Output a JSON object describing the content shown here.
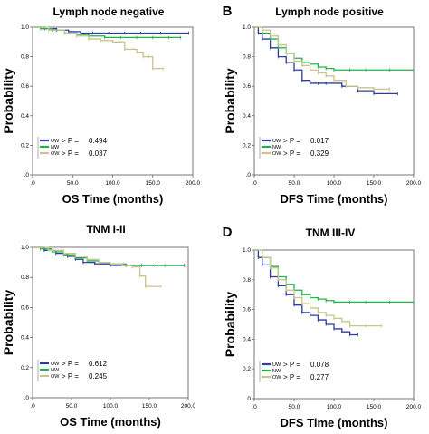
{
  "colors": {
    "UW": "#2b3d9e",
    "NW": "#22b14c",
    "OW": "#c8c48a"
  },
  "chart_data": [
    {
      "type": "line",
      "panel_label": "",
      "title": "Lymph node  negative",
      "title_mark": "-",
      "xlabel": "OS Time (months)",
      "ylabel": "Probability",
      "xlim": [
        0,
        200
      ],
      "ylim": [
        0,
        1.0
      ],
      "xticks": [
        ".0",
        "50.0",
        "100.0",
        "150.0",
        "200.0"
      ],
      "yticks": [
        ".0",
        "0.2",
        "0.4",
        "0.6",
        "0.8",
        "1.0"
      ],
      "legend": [
        {
          "name": "UW",
          "p": "> P = ",
          "pv": "0.494"
        },
        {
          "name": "NW",
          "p": "",
          "pv": ""
        },
        {
          "name": "OW",
          "p": "> P = ",
          "pv": "0.037"
        }
      ],
      "series": [
        {
          "name": "UW",
          "x": [
            0,
            15,
            30,
            45,
            60,
            75,
            95,
            115,
            135,
            160,
            195
          ],
          "y": [
            1.0,
            0.99,
            0.98,
            0.97,
            0.96,
            0.96,
            0.96,
            0.96,
            0.96,
            0.96,
            0.96
          ]
        },
        {
          "name": "NW",
          "x": [
            0,
            10,
            25,
            40,
            55,
            70,
            90,
            110,
            130,
            150,
            170,
            185
          ],
          "y": [
            1.0,
            0.99,
            0.98,
            0.96,
            0.95,
            0.94,
            0.93,
            0.93,
            0.93,
            0.93,
            0.93,
            0.93
          ]
        },
        {
          "name": "OW",
          "x": [
            0,
            20,
            40,
            55,
            70,
            85,
            100,
            115,
            130,
            138,
            145,
            150,
            163
          ],
          "y": [
            1.0,
            0.98,
            0.96,
            0.94,
            0.92,
            0.91,
            0.9,
            0.85,
            0.83,
            0.8,
            0.8,
            0.72,
            0.72
          ]
        }
      ]
    },
    {
      "type": "line",
      "panel_label": "B",
      "title": "Lymph node  positive",
      "xlabel": "DFS Time (months)",
      "ylabel": "Probability",
      "xlim": [
        0,
        200
      ],
      "ylim": [
        0,
        1.0
      ],
      "xticks": [
        ".0",
        "50.0",
        "100.0",
        "150.0",
        "200.0"
      ],
      "yticks": [
        ".0",
        "0.2",
        "0.4",
        "0.6",
        "0.8",
        "1.0"
      ],
      "legend": [
        {
          "name": "UW",
          "p": "> P = ",
          "pv": "0.017"
        },
        {
          "name": "NW",
          "p": "",
          "pv": ""
        },
        {
          "name": "OW",
          "p": "> P = ",
          "pv": "0.329"
        }
      ],
      "series": [
        {
          "name": "UW",
          "x": [
            0,
            5,
            10,
            20,
            30,
            40,
            50,
            60,
            70,
            80,
            90,
            110,
            130,
            150,
            180
          ],
          "y": [
            1.0,
            0.96,
            0.92,
            0.86,
            0.8,
            0.76,
            0.71,
            0.64,
            0.62,
            0.62,
            0.62,
            0.6,
            0.57,
            0.55,
            0.55
          ]
        },
        {
          "name": "NW",
          "x": [
            0,
            10,
            20,
            30,
            40,
            50,
            60,
            70,
            80,
            90,
            100,
            120,
            140,
            170,
            200
          ],
          "y": [
            1.0,
            0.96,
            0.92,
            0.86,
            0.82,
            0.79,
            0.76,
            0.75,
            0.73,
            0.72,
            0.71,
            0.71,
            0.71,
            0.71,
            0.71
          ]
        },
        {
          "name": "OW",
          "x": [
            0,
            10,
            20,
            30,
            40,
            50,
            60,
            70,
            80,
            90,
            100,
            115,
            130,
            150,
            170
          ],
          "y": [
            1.0,
            0.98,
            0.94,
            0.88,
            0.82,
            0.77,
            0.74,
            0.71,
            0.69,
            0.67,
            0.64,
            0.6,
            0.59,
            0.58,
            0.58
          ]
        }
      ]
    },
    {
      "type": "line",
      "panel_label": "",
      "title": "TNM I-II",
      "xlabel": "OS Time (months)",
      "ylabel": "Probability",
      "xlim": [
        0,
        200
      ],
      "ylim": [
        0,
        1.0
      ],
      "xticks": [
        ".0",
        "50.0",
        "100.0",
        "150.0",
        "200.0"
      ],
      "yticks": [
        ".0",
        "0.2",
        "0.4",
        "0.6",
        "0.8",
        "1.0"
      ],
      "legend": [
        {
          "name": "UW",
          "p": "> P = ",
          "pv": "0.612"
        },
        {
          "name": "NW",
          "p": "",
          "pv": ""
        },
        {
          "name": "OW",
          "p": "> P = ",
          "pv": "0.245"
        }
      ],
      "series": [
        {
          "name": "UW",
          "x": [
            0,
            15,
            30,
            45,
            55,
            65,
            80,
            100,
            120,
            140,
            160,
            195
          ],
          "y": [
            1.0,
            0.98,
            0.96,
            0.94,
            0.92,
            0.9,
            0.89,
            0.88,
            0.88,
            0.88,
            0.88,
            0.88
          ]
        },
        {
          "name": "NW",
          "x": [
            0,
            10,
            25,
            40,
            55,
            70,
            85,
            100,
            120,
            140,
            170,
            195
          ],
          "y": [
            1.0,
            0.99,
            0.97,
            0.95,
            0.93,
            0.91,
            0.9,
            0.89,
            0.88,
            0.88,
            0.88,
            0.88
          ]
        },
        {
          "name": "OW",
          "x": [
            0,
            20,
            40,
            55,
            70,
            85,
            100,
            115,
            128,
            138,
            145,
            165
          ],
          "y": [
            1.0,
            0.98,
            0.96,
            0.94,
            0.92,
            0.9,
            0.89,
            0.88,
            0.87,
            0.81,
            0.74,
            0.74
          ]
        }
      ]
    },
    {
      "type": "line",
      "panel_label": "D",
      "title": "TNM III-IV",
      "xlabel": "DFS Time (months)",
      "ylabel": "Probability",
      "xlim": [
        0,
        200
      ],
      "ylim": [
        0,
        1.0
      ],
      "xticks": [
        ".0",
        "50.0",
        "100.0",
        "150.0",
        "200.0"
      ],
      "yticks": [
        ".0",
        "0.2",
        "0.4",
        "0.6",
        "0.8",
        "1.0"
      ],
      "legend": [
        {
          "name": "UW",
          "p": "> P = ",
          "pv": "0.078"
        },
        {
          "name": "NW",
          "p": "",
          "pv": ""
        },
        {
          "name": "OW",
          "p": "> P = ",
          "pv": "0.277"
        }
      ],
      "series": [
        {
          "name": "UW",
          "x": [
            0,
            5,
            10,
            20,
            30,
            40,
            50,
            60,
            70,
            80,
            90,
            100,
            110,
            120,
            130
          ],
          "y": [
            1.0,
            0.95,
            0.9,
            0.82,
            0.76,
            0.7,
            0.63,
            0.58,
            0.56,
            0.53,
            0.5,
            0.47,
            0.45,
            0.43,
            0.43
          ]
        },
        {
          "name": "NW",
          "x": [
            0,
            10,
            20,
            30,
            40,
            50,
            60,
            70,
            80,
            90,
            100,
            120,
            140,
            170,
            200
          ],
          "y": [
            1.0,
            0.95,
            0.89,
            0.82,
            0.77,
            0.73,
            0.7,
            0.68,
            0.67,
            0.66,
            0.65,
            0.65,
            0.65,
            0.65,
            0.65
          ]
        },
        {
          "name": "OW",
          "x": [
            0,
            10,
            20,
            30,
            40,
            50,
            60,
            70,
            80,
            90,
            100,
            110,
            120,
            140,
            160
          ],
          "y": [
            1.0,
            0.95,
            0.88,
            0.8,
            0.73,
            0.68,
            0.64,
            0.61,
            0.58,
            0.56,
            0.54,
            0.52,
            0.49,
            0.49,
            0.49
          ]
        }
      ]
    }
  ]
}
